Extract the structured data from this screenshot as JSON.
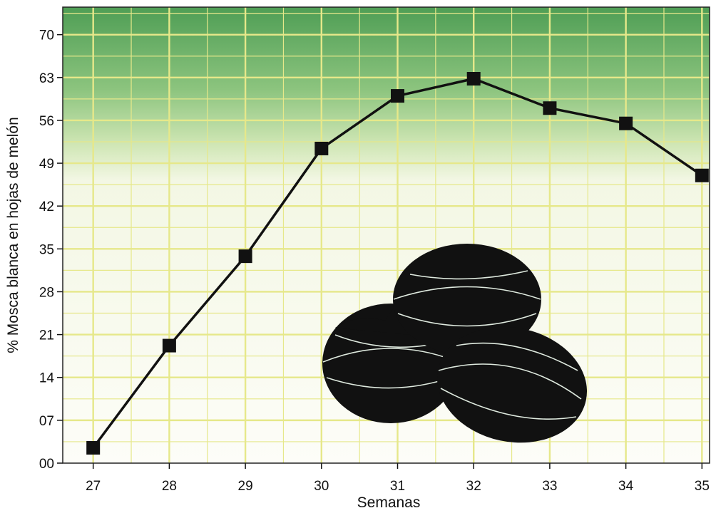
{
  "chart_data": {
    "type": "line",
    "xlabel": "Semanas",
    "ylabel": "% Mosca blanca en hojas de melón",
    "x": [
      27,
      28,
      29,
      30,
      31,
      32,
      33,
      34,
      35
    ],
    "x_tick_labels": [
      "27",
      "28",
      "29",
      "30",
      "31",
      "32",
      "33",
      "34",
      "35"
    ],
    "y_ticks": [
      0,
      7,
      14,
      21,
      28,
      35,
      42,
      49,
      56,
      63,
      70
    ],
    "y_tick_labels": [
      "00",
      "07",
      "14",
      "21",
      "28",
      "35",
      "42",
      "49",
      "56",
      "63",
      "70"
    ],
    "series": [
      {
        "values": [
          2.5,
          19.2,
          33.8,
          51.4,
          60.0,
          62.8,
          58.0,
          55.5,
          47.0
        ]
      }
    ],
    "xlim": [
      26.6,
      35.1
    ],
    "ylim": [
      0,
      74.5
    ],
    "grid": true,
    "legend": "none",
    "colors": {
      "line": "#111111",
      "marker": "#111111",
      "grid": "#e6e88a",
      "background_top": "#57a85a",
      "background_bottom": "#fdfdf6",
      "illustration": "#111111"
    },
    "illustration": "melon-icon"
  }
}
